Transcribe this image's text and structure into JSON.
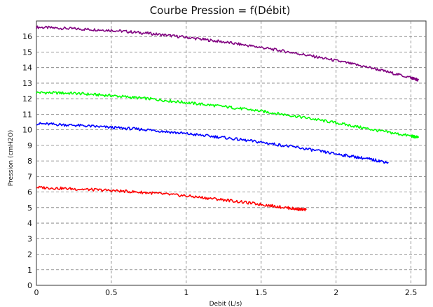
{
  "chart_data": {
    "type": "line",
    "title": "Courbe Pression = f(Débit)",
    "xlabel": "Debit (L/s)",
    "ylabel": "Pression (cmH2O)",
    "xlim": [
      0,
      2.6
    ],
    "ylim": [
      0,
      17
    ],
    "x_ticks": [
      "0",
      "0.5",
      "1",
      "1.5",
      "2",
      "2.5"
    ],
    "x_tick_values": [
      0,
      0.5,
      1,
      1.5,
      2,
      2.5
    ],
    "y_ticks": [
      "0",
      "1",
      "2",
      "3",
      "4",
      "5",
      "6",
      "7",
      "8",
      "9",
      "10",
      "11",
      "12",
      "13",
      "14",
      "15",
      "16"
    ],
    "y_tick_values": [
      0,
      1,
      2,
      3,
      4,
      5,
      6,
      7,
      8,
      9,
      10,
      11,
      12,
      13,
      14,
      15,
      16
    ],
    "grid": true,
    "series": [
      {
        "color": "#800080",
        "x": [
          0,
          0.25,
          0.5,
          0.75,
          1.0,
          1.25,
          1.5,
          1.75,
          2.0,
          2.25,
          2.5,
          2.55
        ],
        "y": [
          16.6,
          16.5,
          16.4,
          16.2,
          15.95,
          15.65,
          15.3,
          14.9,
          14.45,
          13.95,
          13.35,
          13.2
        ]
      },
      {
        "color": "#00ff00",
        "x": [
          0,
          0.25,
          0.5,
          0.75,
          1.0,
          1.25,
          1.5,
          1.75,
          2.0,
          2.25,
          2.5,
          2.55
        ],
        "y": [
          12.4,
          12.35,
          12.2,
          12.0,
          11.75,
          11.5,
          11.2,
          10.85,
          10.45,
          10.0,
          9.6,
          9.5
        ]
      },
      {
        "color": "#0000ff",
        "x": [
          0,
          0.25,
          0.5,
          0.75,
          1.0,
          1.25,
          1.5,
          1.75,
          2.0,
          2.2,
          2.35
        ],
        "y": [
          10.4,
          10.3,
          10.15,
          10.0,
          9.75,
          9.5,
          9.2,
          8.85,
          8.45,
          8.15,
          7.9
        ]
      },
      {
        "color": "#ff0000",
        "x": [
          0,
          0.25,
          0.5,
          0.75,
          1.0,
          1.25,
          1.5,
          1.7,
          1.8
        ],
        "y": [
          6.3,
          6.2,
          6.1,
          5.95,
          5.75,
          5.5,
          5.2,
          4.95,
          4.85
        ]
      }
    ]
  }
}
